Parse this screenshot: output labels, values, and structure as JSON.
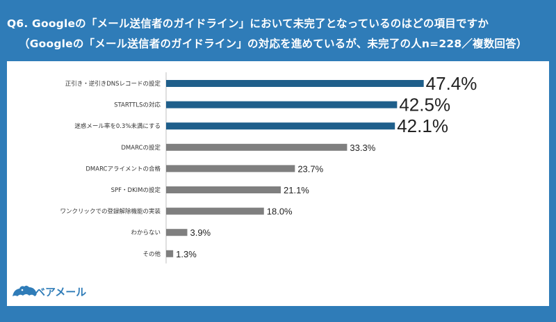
{
  "header": {
    "line1": "Q6. Googleの「メール送信者のガイドライン」において未完了となっているのはどの項目ですか",
    "line2": "（Googleの「メール送信者のガイドライン」の対応を進めているが、未完了の人n=228／複数回答）"
  },
  "logo": {
    "text": "ベアメール",
    "icon": "bear-logo-icon"
  },
  "colors": {
    "frame": "#2f7cb8",
    "highlight_bar": "#1f5f8b",
    "normal_bar": "#7f7f7f",
    "highlight_label": "#ff0000",
    "normal_label": "#222222"
  },
  "chart_data": {
    "type": "bar",
    "orientation": "horizontal",
    "unit": "%",
    "categories": [
      "正引き・逆引きDNSレコードの設定",
      "STARTTLSの対応",
      "迷惑メール率を0.3%未満にする",
      "DMARCの設定",
      "DMARCアライメントの合格",
      "SPF・DKIMの設定",
      "ワンクリックでの登録解除機能の実装",
      "わからない",
      "その他"
    ],
    "values": [
      47.4,
      42.5,
      42.1,
      33.3,
      23.7,
      21.1,
      18.0,
      3.9,
      1.3
    ],
    "value_labels": [
      "47.4%",
      "42.5%",
      "42.1%",
      "33.3%",
      "23.7%",
      "21.1%",
      "18.0%",
      "3.9%",
      "1.3%"
    ],
    "highlighted": [
      true,
      true,
      true,
      false,
      false,
      false,
      false,
      false,
      false
    ],
    "xlim": [
      0,
      100
    ],
    "grid": false,
    "legend": "none"
  }
}
